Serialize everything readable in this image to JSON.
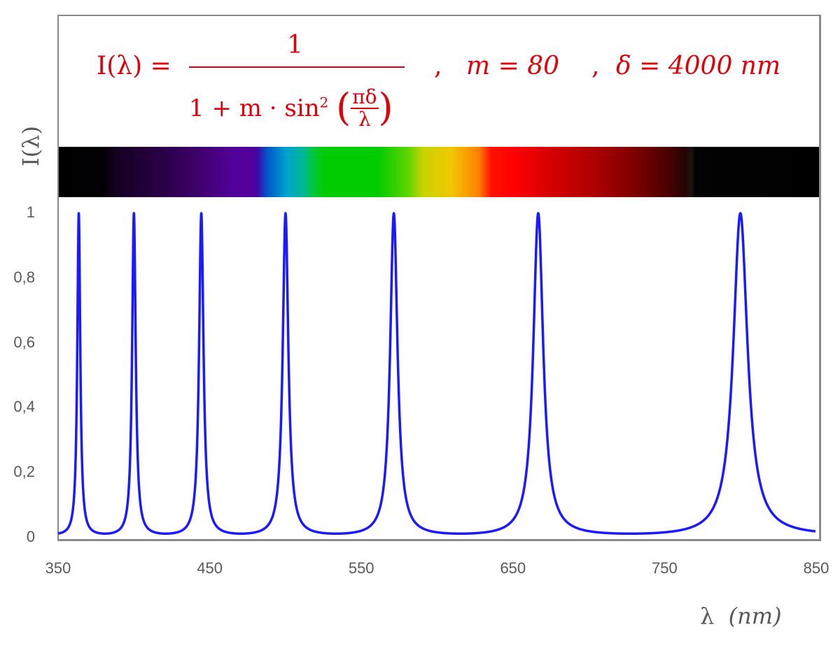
{
  "chart_data": {
    "type": "line",
    "formula": {
      "lhs": "I(λ) =",
      "numerator": "1",
      "denominator_prefix": "1 + m · sin",
      "exponent": "2",
      "inner_numerator": "πδ",
      "inner_denominator": "λ",
      "separator": ",",
      "param_m": "m = 80",
      "param_delta": "δ = 4000 nm"
    },
    "params": {
      "m": 80,
      "delta_nm": 4000
    },
    "peaks_nm": [
      363.6,
      400,
      444.4,
      500,
      571.4,
      666.7,
      800
    ],
    "xlabel_symbol": "λ",
    "xlabel_unit": "(nm)",
    "ylabel": "I(λ)",
    "xlim": [
      350,
      850
    ],
    "ylim": [
      0,
      1
    ],
    "x_ticks": [
      "350",
      "450",
      "550",
      "650",
      "750",
      "850"
    ],
    "x_tick_values": [
      350,
      450,
      550,
      650,
      750,
      850
    ],
    "y_ticks": [
      "0",
      "0,2",
      "0,4",
      "0,6",
      "0,8",
      "1"
    ],
    "y_tick_values": [
      0,
      0.2,
      0.4,
      0.6,
      0.8,
      1
    ],
    "grid": false,
    "line_color": "#1a1aff",
    "formula_color": "#e0000a",
    "spectrum_band": "visible spectrum 380–780 nm"
  }
}
